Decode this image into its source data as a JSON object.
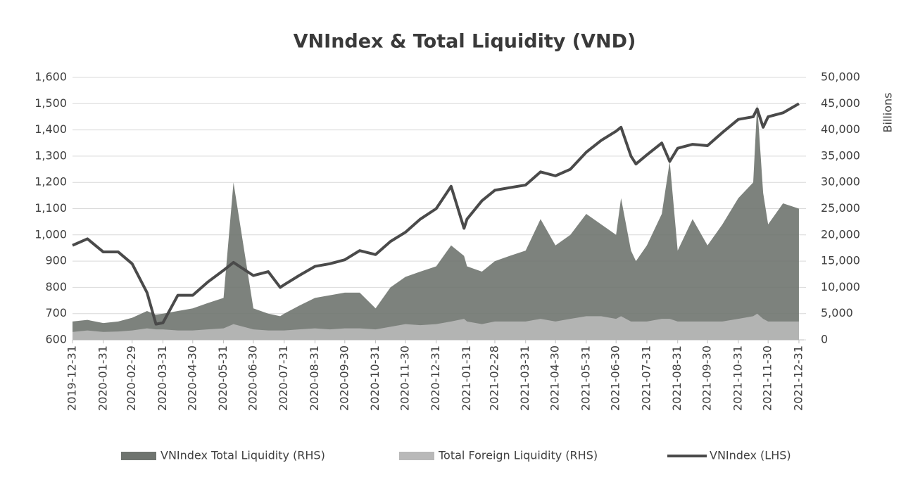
{
  "chart_data": {
    "type": "line-area",
    "title": "VNIndex & Total Liquidity (VND)",
    "y2_label": "Billions",
    "x": [
      "2019-12-31",
      "2020-01-15",
      "2020-01-31",
      "2020-02-15",
      "2020-02-29",
      "2020-03-15",
      "2020-03-24",
      "2020-03-31",
      "2020-04-15",
      "2020-04-30",
      "2020-05-15",
      "2020-05-31",
      "2020-06-10",
      "2020-06-30",
      "2020-07-15",
      "2020-07-27",
      "2020-07-31",
      "2020-08-15",
      "2020-08-31",
      "2020-09-15",
      "2020-09-30",
      "2020-10-15",
      "2020-10-31",
      "2020-11-15",
      "2020-11-30",
      "2020-12-15",
      "2020-12-31",
      "2021-01-15",
      "2021-01-28",
      "2021-01-31",
      "2021-02-15",
      "2021-02-28",
      "2021-03-15",
      "2021-03-31",
      "2021-04-15",
      "2021-04-30",
      "2021-05-15",
      "2021-05-31",
      "2021-06-15",
      "2021-06-30",
      "2021-07-05",
      "2021-07-15",
      "2021-07-20",
      "2021-07-31",
      "2021-08-15",
      "2021-08-23",
      "2021-08-31",
      "2021-09-15",
      "2021-09-30",
      "2021-10-15",
      "2021-10-31",
      "2021-11-15",
      "2021-11-19",
      "2021-11-25",
      "2021-11-30",
      "2021-12-15",
      "2021-12-31"
    ],
    "series": [
      {
        "name": "VNIndex Total Liquidity (RHS)",
        "kind": "area",
        "axis": "y2",
        "color": "#6f746f",
        "values": [
          3500,
          3800,
          3200,
          3500,
          4200,
          5500,
          4800,
          5000,
          5500,
          6000,
          7000,
          8000,
          30000,
          6000,
          5000,
          4500,
          5000,
          6500,
          8000,
          8500,
          9000,
          9000,
          6000,
          10000,
          12000,
          13000,
          14000,
          18000,
          16000,
          14000,
          13000,
          15000,
          16000,
          17000,
          23000,
          18000,
          20000,
          24000,
          22000,
          20000,
          27000,
          17000,
          15000,
          18000,
          24000,
          34000,
          17000,
          23000,
          18000,
          22000,
          27000,
          30000,
          45000,
          28000,
          22000,
          26000,
          25000
        ]
      },
      {
        "name": "Total Foreign Liquidity (RHS)",
        "kind": "area",
        "axis": "y2",
        "color": "#b9b9b9",
        "values": [
          1500,
          1800,
          1500,
          1600,
          1800,
          2200,
          2000,
          2000,
          1800,
          1800,
          2000,
          2200,
          3000,
          2000,
          1800,
          1800,
          1800,
          2000,
          2200,
          2000,
          2200,
          2200,
          2000,
          2500,
          3000,
          2800,
          3000,
          3500,
          4000,
          3500,
          3000,
          3500,
          3500,
          3500,
          4000,
          3500,
          4000,
          4500,
          4500,
          4000,
          4500,
          3500,
          3500,
          3500,
          4000,
          4000,
          3500,
          3500,
          3500,
          3500,
          4000,
          4500,
          5000,
          4000,
          3500,
          3500,
          3500
        ]
      },
      {
        "name": "VNIndex (LHS)",
        "kind": "line",
        "axis": "y",
        "color": "#4a4a4a",
        "values": [
          960,
          985,
          935,
          935,
          890,
          780,
          660,
          665,
          770,
          770,
          820,
          865,
          895,
          845,
          860,
          800,
          810,
          845,
          880,
          890,
          905,
          940,
          925,
          975,
          1010,
          1060,
          1100,
          1185,
          1025,
          1060,
          1130,
          1170,
          1180,
          1190,
          1240,
          1225,
          1250,
          1315,
          1360,
          1395,
          1410,
          1300,
          1270,
          1305,
          1350,
          1280,
          1330,
          1345,
          1340,
          1390,
          1440,
          1450,
          1480,
          1410,
          1450,
          1465,
          1500
        ]
      }
    ],
    "xlim": [
      "2019-12-31",
      "2022-01-05"
    ],
    "xticks": [
      "2019-12-31",
      "2020-01-31",
      "2020-02-29",
      "2020-03-31",
      "2020-04-30",
      "2020-05-31",
      "2020-06-30",
      "2020-07-31",
      "2020-08-31",
      "2020-09-30",
      "2020-10-31",
      "2020-11-30",
      "2020-12-31",
      "2021-01-31",
      "2021-02-28",
      "2021-03-31",
      "2021-04-30",
      "2021-05-31",
      "2021-06-30",
      "2021-07-31",
      "2021-08-31",
      "2021-09-30",
      "2021-10-31",
      "2021-11-30",
      "2021-12-31"
    ],
    "ylim": [
      600,
      1600
    ],
    "yticks": [
      600,
      700,
      800,
      900,
      {
        "value": 1000,
        "label": "1,000"
      },
      {
        "value": 1100,
        "label": "1,100"
      },
      {
        "value": 1200,
        "label": "1,200"
      },
      {
        "value": 1300,
        "label": "1,300"
      },
      {
        "value": 1400,
        "label": "1,400"
      },
      {
        "value": 1500,
        "label": "1,500"
      },
      {
        "value": 1600,
        "label": "1,600"
      }
    ],
    "y2lim": [
      0,
      50000
    ],
    "y2ticks": [
      0,
      {
        "value": 5000,
        "label": "5,000"
      },
      {
        "value": 10000,
        "label": "10,000"
      },
      {
        "value": 15000,
        "label": "15,000"
      },
      {
        "value": 20000,
        "label": "20,000"
      },
      {
        "value": 25000,
        "label": "25,000"
      },
      {
        "value": 30000,
        "label": "30,000"
      },
      {
        "value": 35000,
        "label": "35,000"
      },
      {
        "value": 40000,
        "label": "40,000"
      },
      {
        "value": 45000,
        "label": "45,000"
      },
      {
        "value": 50000,
        "label": "50,000"
      }
    ],
    "grid": true,
    "legend": "bottom"
  }
}
